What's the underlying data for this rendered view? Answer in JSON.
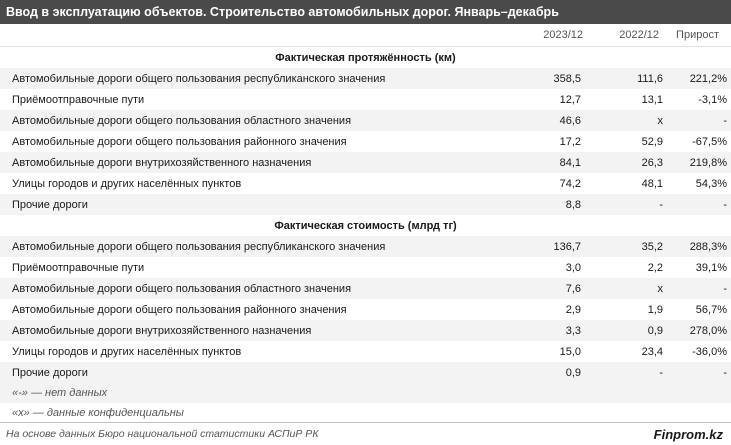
{
  "title": "Ввод в эксплуатацию объектов. Строительство автомобильных дорог. Январь–декабрь",
  "columns": [
    "2023/12",
    "2022/12",
    "Прирост"
  ],
  "sections": [
    {
      "heading": "Фактическая протяжённость (км)",
      "rows": [
        {
          "name": "Автомобильные дороги общего пользования республиканского значения",
          "v2023": "358,5",
          "v2022": "111,6",
          "growth": "221,2%"
        },
        {
          "name": "Приёмоотправочные пути",
          "v2023": "12,7",
          "v2022": "13,1",
          "growth": "-3,1%"
        },
        {
          "name": "Автомобильные дороги общего пользования областного значения",
          "v2023": "46,6",
          "v2022": "x",
          "growth": "-"
        },
        {
          "name": "Автомобильные дороги общего пользования районного значения",
          "v2023": "17,2",
          "v2022": "52,9",
          "growth": "-67,5%"
        },
        {
          "name": "Автомобильные дороги внутрихозяйственного назначения",
          "v2023": "84,1",
          "v2022": "26,3",
          "growth": "219,8%"
        },
        {
          "name": "Улицы городов и других населённых пунктов",
          "v2023": "74,2",
          "v2022": "48,1",
          "growth": "54,3%"
        },
        {
          "name": "Прочие дороги",
          "v2023": "8,8",
          "v2022": "-",
          "growth": "-"
        }
      ]
    },
    {
      "heading": "Фактическая стоимость (млрд тг)",
      "rows": [
        {
          "name": "Автомобильные дороги общего пользования республиканского значения",
          "v2023": "136,7",
          "v2022": "35,2",
          "growth": "288,3%"
        },
        {
          "name": "Приёмоотправочные пути",
          "v2023": "3,0",
          "v2022": "2,2",
          "growth": "39,1%"
        },
        {
          "name": "Автомобильные дороги общего пользования областного значения",
          "v2023": "7,6",
          "v2022": "x",
          "growth": "-"
        },
        {
          "name": "Автомобильные дороги общего пользования районного значения",
          "v2023": "2,9",
          "v2022": "1,9",
          "growth": "56,7%"
        },
        {
          "name": "Автомобильные дороги внутрихозяйственного назначения",
          "v2023": "3,3",
          "v2022": "0,9",
          "growth": "278,0%"
        },
        {
          "name": "Улицы городов и других населённых пунктов",
          "v2023": "15,0",
          "v2022": "23,4",
          "growth": "-36,0%"
        },
        {
          "name": "Прочие дороги",
          "v2023": "0,9",
          "v2022": "-",
          "growth": "-"
        }
      ]
    }
  ],
  "notes": [
    "«-» — нет данных",
    "«x» — данные конфиденциальны"
  ],
  "footer": {
    "source": "На основе данных Бюро национальной статистики АСПиР РК",
    "brand": "Finprom.kz"
  }
}
